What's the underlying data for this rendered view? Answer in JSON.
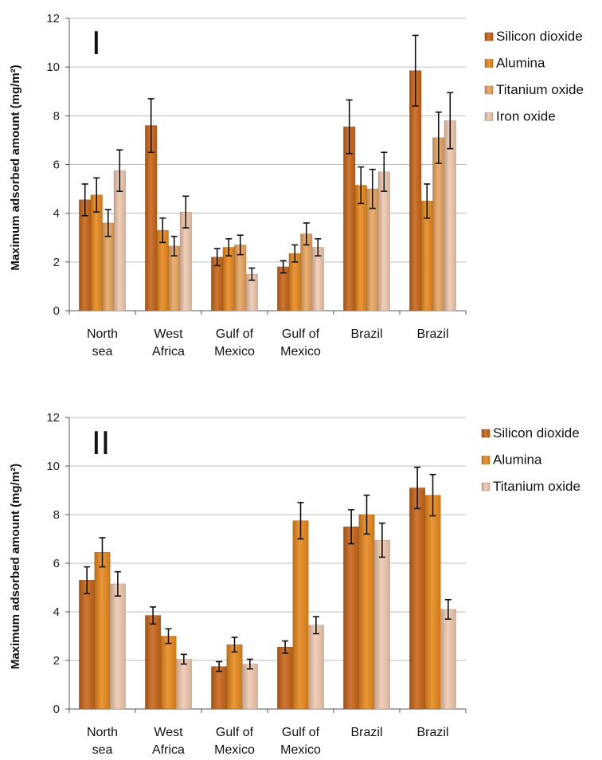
{
  "chart_data": [
    {
      "type": "bar",
      "panel_label": "I",
      "ylabel": "Maximum adsorbed amount (mg/m²)",
      "ylim": [
        0,
        12
      ],
      "yticks": [
        0,
        2,
        4,
        6,
        8,
        10,
        12
      ],
      "grid": true,
      "legend_position": "right",
      "categories": [
        [
          "North",
          "sea"
        ],
        [
          "West",
          "Africa"
        ],
        [
          "Gulf of",
          "Mexico"
        ],
        [
          "Gulf of",
          "Mexico"
        ],
        [
          "Brazil"
        ],
        [
          "Brazil"
        ]
      ],
      "series": [
        {
          "name": "Silicon dioxide",
          "color": "#c8651a",
          "values": [
            4.55,
            7.6,
            2.2,
            1.8,
            7.55,
            9.85
          ],
          "errors": [
            0.65,
            1.1,
            0.35,
            0.25,
            1.1,
            1.45
          ]
        },
        {
          "name": "Alumina",
          "color": "#e8891e",
          "values": [
            4.75,
            3.3,
            2.6,
            2.35,
            5.15,
            4.5
          ],
          "errors": [
            0.7,
            0.5,
            0.35,
            0.35,
            0.75,
            0.7
          ]
        },
        {
          "name": "Titanium oxide",
          "color": "#e8a560",
          "values": [
            3.6,
            2.65,
            2.7,
            3.15,
            5.0,
            7.1
          ],
          "errors": [
            0.55,
            0.4,
            0.4,
            0.45,
            0.8,
            1.05
          ]
        },
        {
          "name": "Iron oxide",
          "color": "#f0c9b0",
          "values": [
            5.75,
            4.05,
            1.5,
            2.6,
            5.7,
            7.8
          ],
          "errors": [
            0.85,
            0.65,
            0.25,
            0.35,
            0.8,
            1.15
          ]
        }
      ]
    },
    {
      "type": "bar",
      "panel_label": "II",
      "ylabel": "Maximum adsorbed amount (mg/m²)",
      "ylim": [
        0,
        12
      ],
      "yticks": [
        0,
        2,
        4,
        6,
        8,
        10,
        12
      ],
      "grid": true,
      "legend_position": "right",
      "categories": [
        [
          "North",
          "sea"
        ],
        [
          "West",
          "Africa"
        ],
        [
          "Gulf of",
          "Mexico"
        ],
        [
          "Gulf of",
          "Mexico"
        ],
        [
          "Brazil"
        ],
        [
          "Brazil"
        ]
      ],
      "series": [
        {
          "name": "Silicon dioxide",
          "color": "#c8651a",
          "values": [
            5.3,
            3.85,
            1.75,
            2.55,
            7.5,
            9.1
          ],
          "errors": [
            0.55,
            0.35,
            0.2,
            0.25,
            0.7,
            0.85
          ]
        },
        {
          "name": "Alumina",
          "color": "#e8891e",
          "values": [
            6.45,
            3.0,
            2.65,
            7.75,
            8.0,
            8.8
          ],
          "errors": [
            0.6,
            0.3,
            0.3,
            0.75,
            0.8,
            0.85
          ]
        },
        {
          "name": "Titanium oxide",
          "color": "#f0c9b0",
          "values": [
            5.15,
            2.05,
            1.85,
            3.45,
            6.95,
            4.1
          ],
          "errors": [
            0.5,
            0.2,
            0.2,
            0.35,
            0.7,
            0.4
          ]
        }
      ]
    }
  ]
}
